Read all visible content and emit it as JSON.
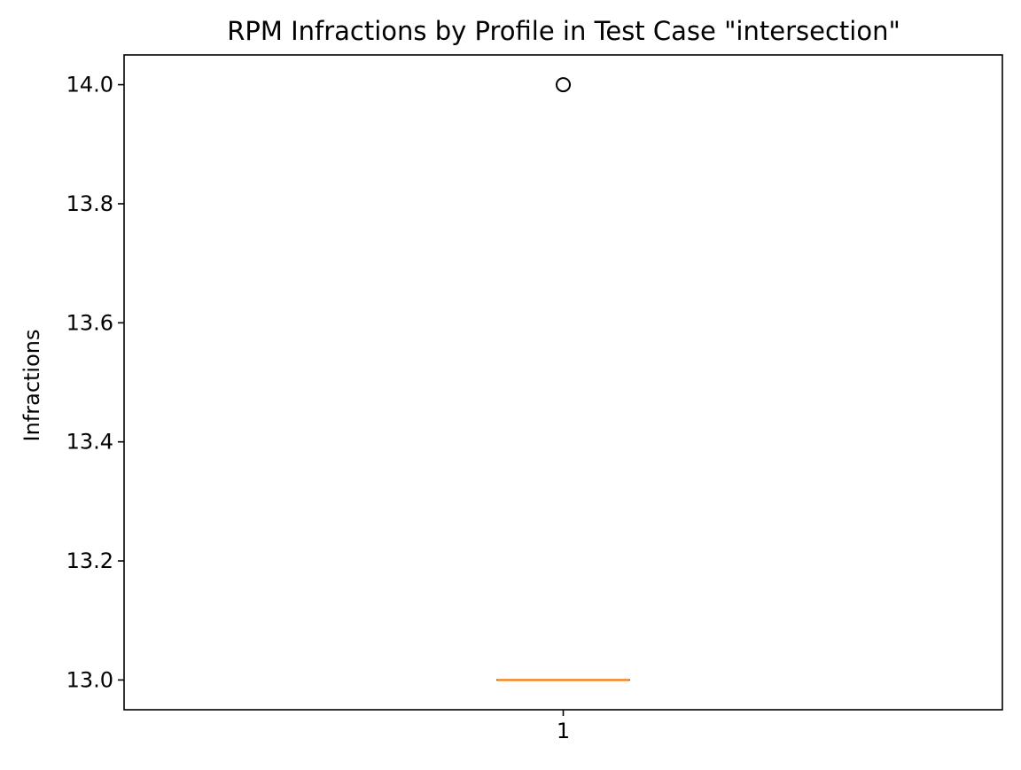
{
  "chart_data": {
    "type": "box",
    "title": "RPM Infractions by Profile in Test Case \"intersection\"",
    "xlabel": "",
    "ylabel": "Infractions",
    "categories": [
      "1"
    ],
    "boxes": [
      {
        "category": "1",
        "min": 13.0,
        "q1": 13.0,
        "median": 13.0,
        "q3": 13.0,
        "max": 13.0,
        "outliers": [
          14.0
        ]
      }
    ],
    "ylim": [
      12.95,
      14.05
    ],
    "yticks": [
      "13.0",
      "13.2",
      "13.4",
      "13.6",
      "13.8",
      "14.0"
    ],
    "grid": false,
    "colors": {
      "median": "#ff7f0e",
      "box": "#000000",
      "outlier": "#000000",
      "background": "#ffffff"
    }
  }
}
